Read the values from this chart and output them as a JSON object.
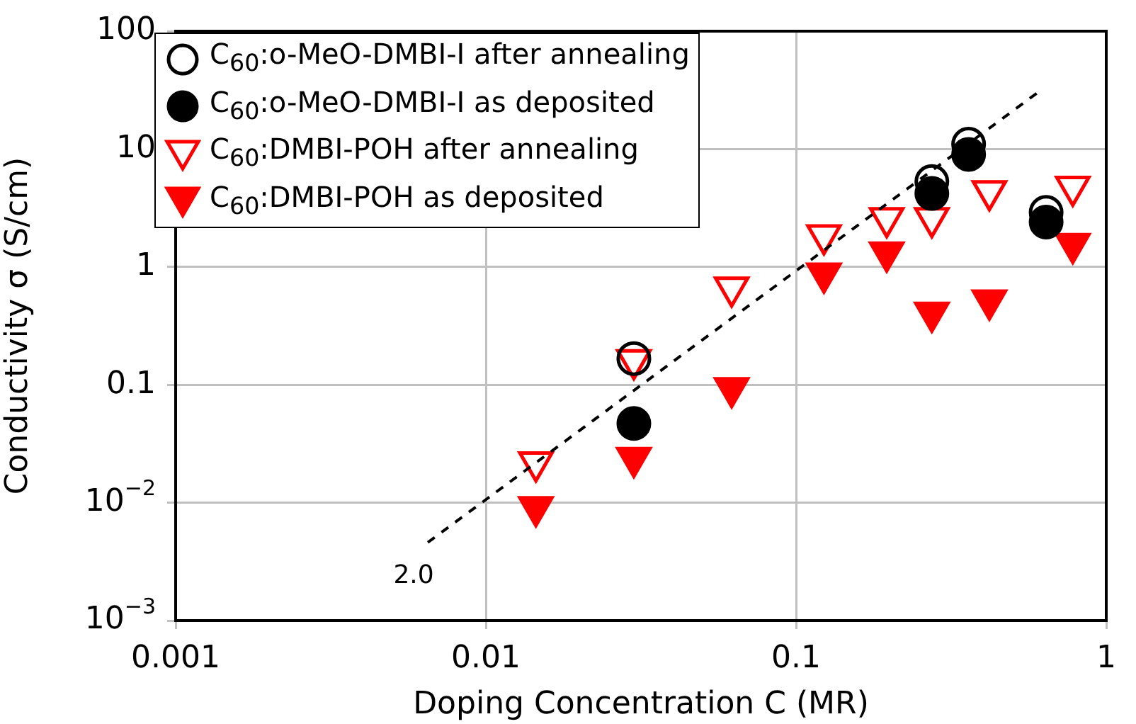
{
  "chart_data": {
    "type": "scatter",
    "xlabel": "Doping Concentration C (MR)",
    "ylabel": "Conductivity σ (S/cm)",
    "log": "xy",
    "xlim": [
      0.001,
      1
    ],
    "ylim": [
      0.001,
      100
    ],
    "xticks": [
      0.001,
      0.01,
      0.1,
      1
    ],
    "yticks": [
      {
        "value": 0.001,
        "label": "10$^{−3}$"
      },
      {
        "value": 0.01,
        "label": "10$^{−2}$"
      },
      0.1,
      1,
      10,
      100
    ],
    "grid": true,
    "legend": "top left",
    "annotations": [
      "2.0"
    ],
    "series": [
      {
        "name": "C$_{60}$:o-MeO-DMBI-I after annealing",
        "color": "#000000",
        "marker": "circle",
        "x": [
          0.03,
          0.274,
          0.36,
          0.64
        ],
        "values": [
          0.167,
          5.3,
          11,
          2.9
        ]
      },
      {
        "name": "C$_{60}$:o-MeO-DMBI-I as deposited",
        "color": "#000000",
        "marker": "circle",
        "x": [
          0.03,
          0.274,
          0.36,
          0.64
        ],
        "values": [
          0.047,
          4.2,
          9.0,
          2.4
        ]
      },
      {
        "name": "C$_{60}$:DMBI-POH after annealing",
        "color": "#ff0000",
        "marker": "triangle",
        "x": [
          0.0145,
          0.03,
          0.062,
          0.123,
          0.196,
          0.274,
          0.42,
          0.78
        ],
        "values": [
          0.022,
          0.162,
          0.67,
          1.86,
          2.6,
          2.6,
          4.4,
          4.8
        ]
      },
      {
        "name": "C$_{60}$:DMBI-POH as deposited",
        "color": "#ff0000",
        "marker": "triangle",
        "x": [
          0.0145,
          0.03,
          0.062,
          0.123,
          0.196,
          0.274,
          0.42,
          0.78
        ],
        "values": [
          0.0092,
          0.024,
          0.094,
          0.88,
          1.33,
          0.41,
          0.52,
          1.57
        ]
      },
      {
        "type": "line",
        "color": "#000000",
        "line_style": "dashed",
        "marker": "none",
        "x": [
          0.0065,
          0.62
        ],
        "values": [
          0.0046,
          32
        ]
      }
    ]
  }
}
